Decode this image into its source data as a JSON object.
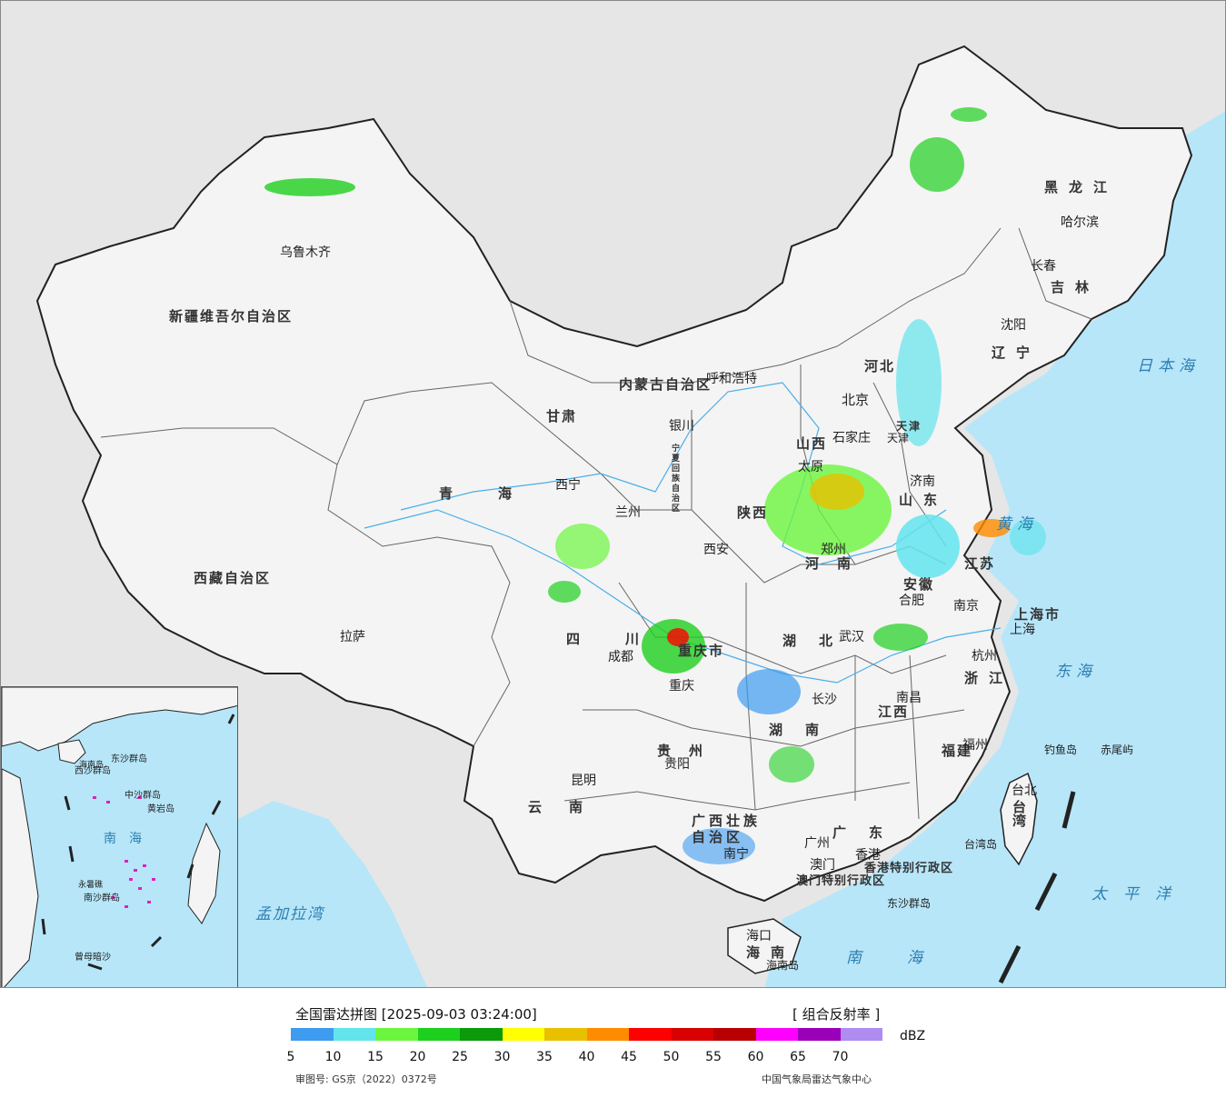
{
  "map": {
    "provinces": [
      {
        "name": "新疆维吾尔自治区"
      },
      {
        "name": "西藏自治区"
      },
      {
        "name": "青海"
      },
      {
        "name": "甘肃"
      },
      {
        "name": "内蒙古自治区"
      },
      {
        "name": "黑龙江"
      },
      {
        "name": "吉林"
      },
      {
        "name": "辽宁"
      },
      {
        "name": "河北"
      },
      {
        "name": "山西"
      },
      {
        "name": "陕西"
      },
      {
        "name": "河南"
      },
      {
        "name": "山东"
      },
      {
        "name": "江苏"
      },
      {
        "name": "安徽"
      },
      {
        "name": "四川"
      },
      {
        "name": "重庆市"
      },
      {
        "name": "湖北"
      },
      {
        "name": "湖南"
      },
      {
        "name": "江西"
      },
      {
        "name": "浙江"
      },
      {
        "name": "福建"
      },
      {
        "name": "贵州"
      },
      {
        "name": "云南"
      },
      {
        "name": "广西壮族自治区"
      },
      {
        "name": "广东"
      },
      {
        "name": "海南"
      },
      {
        "name": "台湾"
      },
      {
        "name": "上海市"
      },
      {
        "name": "天津"
      },
      {
        "name": "宁夏回族自治区"
      },
      {
        "name": "香港特别行政区"
      },
      {
        "name": "澳门特别行政区"
      }
    ],
    "cities": [
      "乌鲁木齐",
      "拉萨",
      "西宁",
      "兰州",
      "银川",
      "呼和浩特",
      "哈尔滨",
      "长春",
      "沈阳",
      "北京",
      "天津",
      "石家庄",
      "太原",
      "济南",
      "郑州",
      "西安",
      "合肥",
      "南京",
      "上海",
      "杭州",
      "武汉",
      "成都",
      "重庆",
      "长沙",
      "南昌",
      "福州",
      "贵阳",
      "昆明",
      "南宁",
      "广州",
      "澳门",
      "香港",
      "海口",
      "台北"
    ],
    "other_labels": [
      "钓鱼岛",
      "赤尾屿",
      "东沙群岛",
      "台湾岛",
      "海南岛"
    ],
    "seas": [
      "日本海",
      "黄海",
      "东海",
      "太平洋",
      "南海",
      "孟加拉湾"
    ],
    "inset_labels": [
      "南海",
      "东沙群岛",
      "西沙群岛",
      "中沙群岛",
      "黄岩岛",
      "南沙群岛",
      "曾母暗沙",
      "永暑礁",
      "海南岛"
    ]
  },
  "legend": {
    "title": "全国雷达拼图 [2025-09-03 03:24:00]",
    "product": "[ 组合反射率 ]",
    "unit": "dBZ",
    "ticks": [
      "5",
      "10",
      "15",
      "20",
      "25",
      "30",
      "35",
      "40",
      "45",
      "50",
      "55",
      "60",
      "65",
      "70"
    ],
    "colors": [
      "#3d9bf0",
      "#63e4ed",
      "#6cf53d",
      "#1ed01e",
      "#0a9a0a",
      "#ffff00",
      "#e8c000",
      "#ff8c00",
      "#ff0000",
      "#d80000",
      "#b80000",
      "#ff00ff",
      "#9a00b8",
      "#ae8cf0"
    ],
    "approval_number": "审图号: GS京（2022）0372号",
    "source": "中国气象局雷达气象中心"
  }
}
